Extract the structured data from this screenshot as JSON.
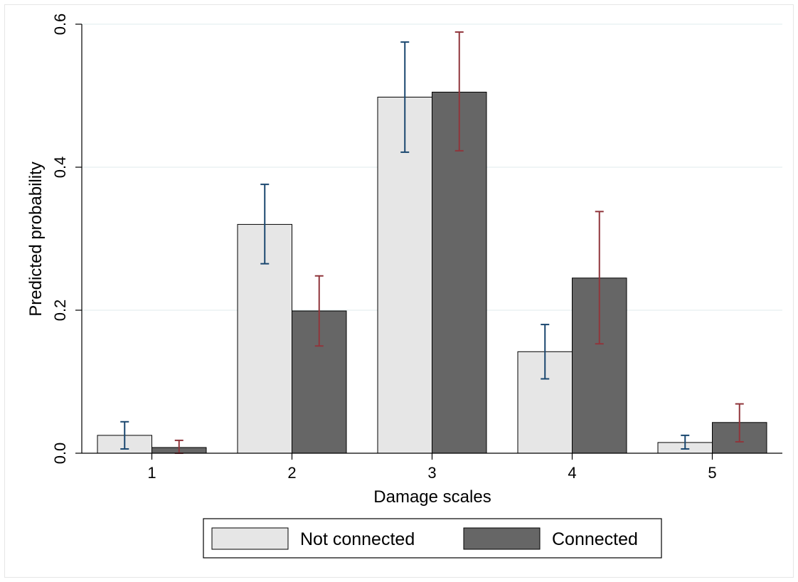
{
  "chart_data": {
    "type": "bar",
    "title": "",
    "xlabel": "Damage scales",
    "ylabel": "Predicted probability",
    "categories": [
      "1",
      "2",
      "3",
      "4",
      "5"
    ],
    "ylim": [
      0,
      0.6
    ],
    "yticks": [
      "0.0",
      "0.2",
      "0.4",
      "0.6"
    ],
    "grid": true,
    "legend_position": "bottom",
    "series": [
      {
        "name": "Not connected",
        "color": "#e6e6e6",
        "error_color": "#1a476f",
        "values": [
          0.025,
          0.32,
          0.498,
          0.142,
          0.015
        ],
        "ci_low": [
          0.006,
          0.265,
          0.421,
          0.104,
          0.006
        ],
        "ci_high": [
          0.044,
          0.376,
          0.575,
          0.18,
          0.025
        ]
      },
      {
        "name": "Connected",
        "color": "#666666",
        "error_color": "#90353b",
        "values": [
          0.008,
          0.199,
          0.505,
          0.245,
          0.043
        ],
        "ci_low": [
          -0.002,
          0.15,
          0.423,
          0.153,
          0.016
        ],
        "ci_high": [
          0.018,
          0.248,
          0.589,
          0.338,
          0.069
        ]
      }
    ]
  }
}
